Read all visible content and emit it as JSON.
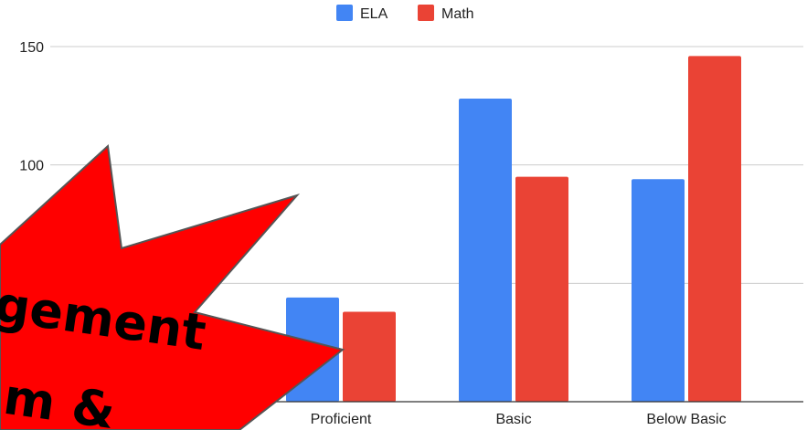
{
  "chart_data": {
    "type": "bar",
    "title": "",
    "xlabel": "",
    "ylabel": "",
    "categories": [
      "Proficient",
      "Basic",
      "Below Basic"
    ],
    "series": [
      {
        "name": "ELA",
        "color": "#4285f4",
        "values": [
          44,
          128,
          94
        ]
      },
      {
        "name": "Math",
        "color": "#ea4335",
        "values": [
          38,
          95,
          146
        ]
      }
    ],
    "ylim": [
      0,
      150
    ],
    "y_ticks": [
      "150",
      "100"
    ],
    "grid": true,
    "legend_position": "top-center"
  },
  "overlay": {
    "shape": "starburst",
    "color": "#ff0000",
    "text_line1": "gement",
    "text_line2": "m &"
  }
}
